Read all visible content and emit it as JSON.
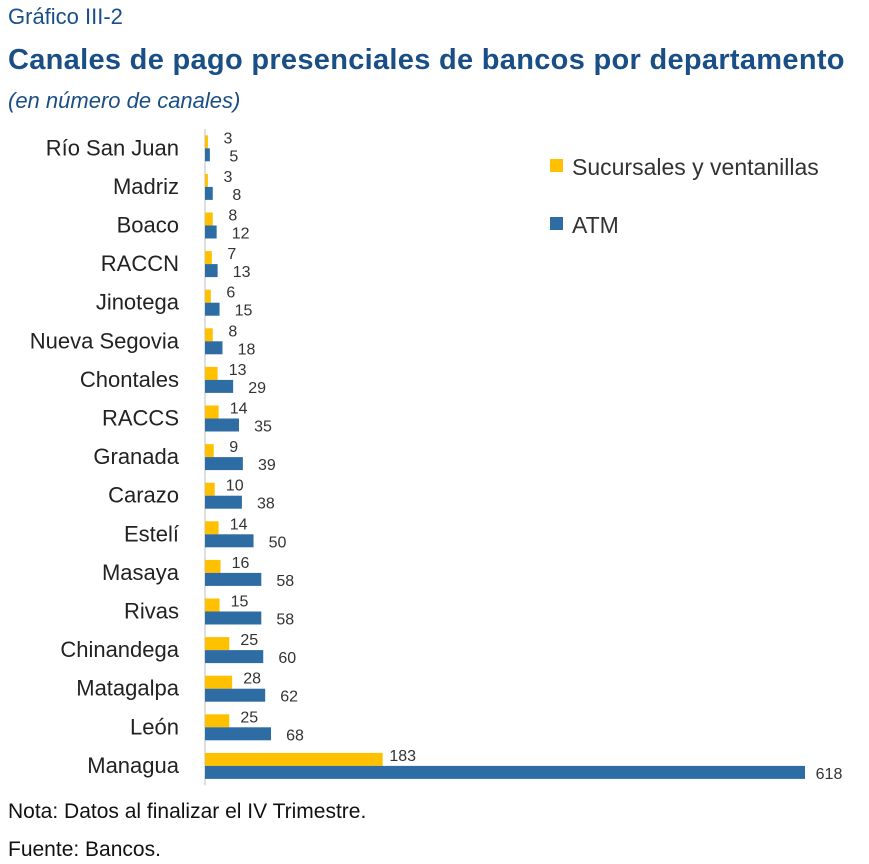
{
  "header": {
    "label": "Gráfico III-2",
    "title": "Canales de pago presenciales de bancos por departamento",
    "subtitle": "(en número de canales)"
  },
  "footer": {
    "note": "Nota: Datos al finalizar el IV Trimestre.",
    "source": "Fuente: Bancos."
  },
  "chart_data": {
    "type": "bar",
    "orientation": "horizontal",
    "categories": [
      "Río San Juan",
      "Madriz",
      "Boaco",
      "RACCN",
      "Jinotega",
      "Nueva Segovia",
      "Chontales",
      "RACCS",
      "Granada",
      "Carazo",
      "Estelí",
      "Masaya",
      "Rivas",
      "Chinandega",
      "Matagalpa",
      "León",
      "Managua"
    ],
    "series": [
      {
        "name": "Sucursales y ventanillas",
        "color": "#ffc000",
        "values": [
          3,
          3,
          8,
          7,
          6,
          8,
          13,
          14,
          9,
          10,
          14,
          16,
          15,
          25,
          28,
          25,
          183
        ]
      },
      {
        "name": "ATM",
        "color": "#2e6da4",
        "values": [
          5,
          8,
          12,
          13,
          15,
          18,
          29,
          35,
          39,
          38,
          50,
          58,
          58,
          60,
          62,
          68,
          618
        ]
      }
    ],
    "legend_position": "top-right",
    "data_labels": true,
    "grid": false,
    "xlim": [
      0,
      618
    ]
  }
}
